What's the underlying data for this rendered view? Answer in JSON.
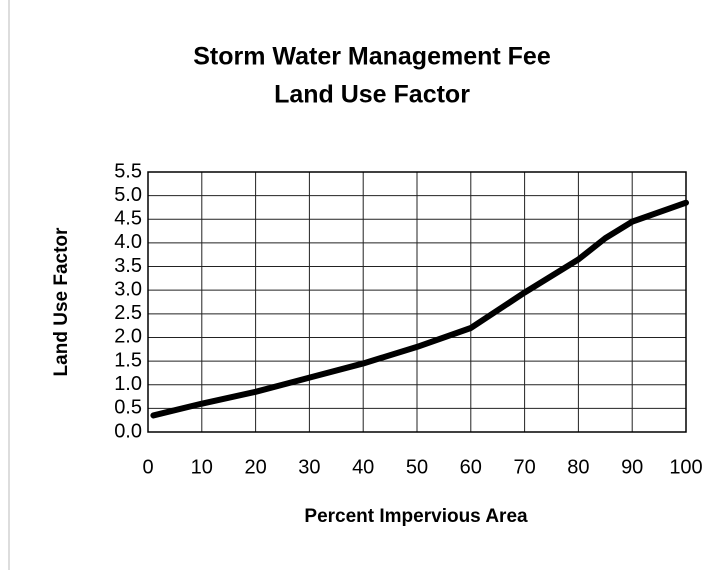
{
  "chart_data": {
    "type": "line",
    "title": [
      "Storm Water Management Fee",
      "Land Use Factor"
    ],
    "x_label": "Percent Impervious Area",
    "y_label": "Land Use Factor",
    "x": [
      1,
      10,
      20,
      25,
      30,
      40,
      50,
      60,
      70,
      80,
      85,
      90,
      100
    ],
    "series": [
      {
        "name": "Land Use Factor",
        "color": "#000000",
        "values": [
          0.35,
          0.6,
          0.85,
          1.0,
          1.15,
          1.45,
          1.8,
          2.2,
          2.95,
          3.65,
          4.1,
          4.45,
          4.85
        ]
      }
    ],
    "xlim": [
      0,
      100
    ],
    "xticks": [
      0,
      10,
      20,
      30,
      40,
      50,
      60,
      70,
      80,
      90,
      100
    ],
    "ylim": [
      0,
      5.5
    ],
    "yticks": [
      {
        "value": 0,
        "label": "0.0"
      },
      0.5,
      {
        "value": 1,
        "label": "1.0"
      },
      1.5,
      {
        "value": 2,
        "label": "2.0"
      },
      2.5,
      {
        "value": 3,
        "label": "3.0"
      },
      3.5,
      {
        "value": 4,
        "label": "4.0"
      },
      4.5,
      {
        "value": 5,
        "label": "5.0"
      },
      5.5
    ],
    "grid": true
  }
}
